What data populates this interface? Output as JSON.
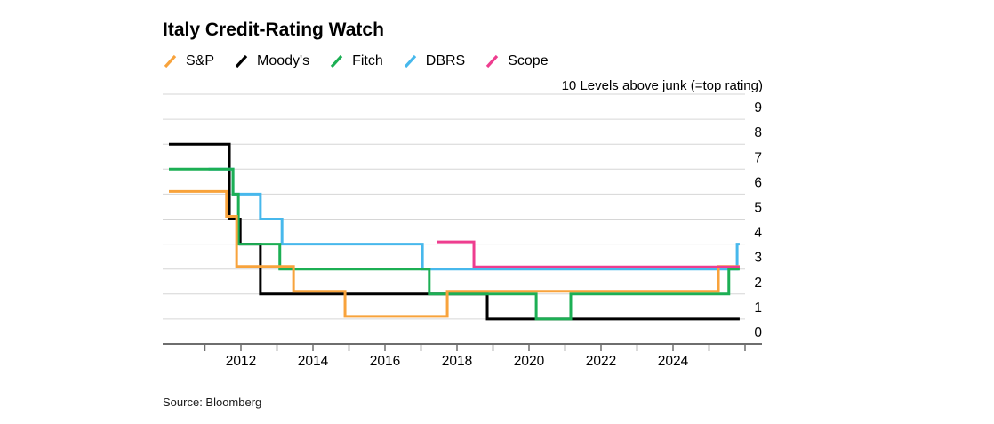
{
  "chart_data": {
    "type": "line",
    "step": true,
    "title": "Italy Credit-Rating Watch",
    "right_axis_label": "10 Levels above junk (=top rating)",
    "source": "Source: Bloomberg",
    "legend_position": "top-left",
    "grid": "horizontal",
    "colors": {
      "sp": "#F8A33C",
      "moodys": "#000000",
      "fitch": "#1CAF54",
      "dbrs": "#47B8EC",
      "scope": "#EE3D8F",
      "gridline": "#D6D6D6",
      "axis": "#6E6E6E"
    },
    "y_axis": {
      "range": [
        0,
        10
      ],
      "gridline_values": [
        0,
        1,
        2,
        3,
        4,
        5,
        6,
        7,
        8,
        9,
        10
      ],
      "labels": [
        "0",
        "1",
        "2",
        "3",
        "4",
        "5",
        "6",
        "7",
        "8",
        "9"
      ]
    },
    "x_axis": {
      "range_years": [
        2009.8,
        2026.2
      ],
      "tick_years": [
        2011,
        2012,
        2013,
        2014,
        2015,
        2016,
        2017,
        2018,
        2019,
        2020,
        2021,
        2022,
        2023,
        2024,
        2025,
        2026
      ],
      "label_years": [
        "2012",
        "2014",
        "2016",
        "2018",
        "2020",
        "2022",
        "2024"
      ]
    },
    "series": [
      {
        "name": "Moody's",
        "color_key": "moodys",
        "points": [
          [
            2010.0,
            8
          ],
          [
            2011.68,
            5
          ],
          [
            2011.98,
            4
          ],
          [
            2012.54,
            2
          ],
          [
            2018.84,
            1
          ],
          [
            2025.85,
            1
          ]
        ]
      },
      {
        "name": "DBRS",
        "color_key": "dbrs",
        "points": [
          [
            2011.1,
            7
          ],
          [
            2011.78,
            6
          ],
          [
            2012.54,
            5
          ],
          [
            2013.14,
            4
          ],
          [
            2017.04,
            3
          ],
          [
            2025.78,
            4
          ],
          [
            2025.85,
            4
          ]
        ]
      },
      {
        "name": "Fitch",
        "color_key": "fitch",
        "points": [
          [
            2010.0,
            7
          ],
          [
            2011.78,
            6
          ],
          [
            2011.93,
            4
          ],
          [
            2013.08,
            3
          ],
          [
            2017.23,
            2
          ],
          [
            2020.2,
            1
          ],
          [
            2021.16,
            2
          ],
          [
            2025.55,
            3
          ],
          [
            2025.85,
            3
          ]
        ]
      },
      {
        "name": "S&P",
        "color_key": "sp",
        "points": [
          [
            2010.0,
            6
          ],
          [
            2011.6,
            5
          ],
          [
            2011.88,
            3
          ],
          [
            2013.46,
            2
          ],
          [
            2014.89,
            1
          ],
          [
            2017.73,
            2
          ],
          [
            2025.26,
            3
          ],
          [
            2025.85,
            3
          ]
        ]
      },
      {
        "name": "Scope",
        "color_key": "scope",
        "points": [
          [
            2017.45,
            4
          ],
          [
            2018.47,
            3
          ],
          [
            2025.85,
            3
          ]
        ]
      }
    ],
    "legend_order": [
      "S&P",
      "Moody's",
      "Fitch",
      "DBRS",
      "Scope"
    ]
  }
}
